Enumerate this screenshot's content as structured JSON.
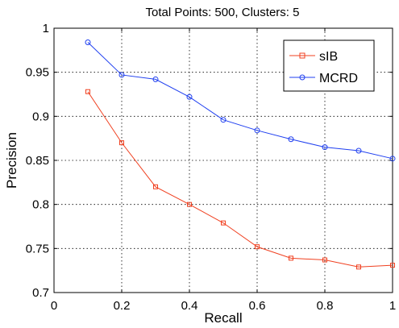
{
  "chart_data": {
    "type": "line",
    "title": "Total Points: 500, Clusters: 5",
    "xlabel": "Recall",
    "ylabel": "Precision",
    "xlim": [
      0,
      1
    ],
    "ylim": [
      0.7,
      1
    ],
    "xticks": [
      "0",
      "0.2",
      "0.4",
      "0.6",
      "0.8",
      "1"
    ],
    "xtick_values": [
      0,
      0.2,
      0.4,
      0.6,
      0.8,
      1
    ],
    "yticks": [
      "0.7",
      "0.75",
      "0.8",
      "0.85",
      "0.9",
      "0.95",
      "1"
    ],
    "ytick_values": [
      0.7,
      0.75,
      0.8,
      0.85,
      0.9,
      0.95,
      1
    ],
    "grid": true,
    "legend_position": "top-right",
    "x": [
      0.1,
      0.2,
      0.3,
      0.4,
      0.5,
      0.6,
      0.7,
      0.8,
      0.9,
      1.0
    ],
    "series": [
      {
        "name": "sIB",
        "color": "#f04020",
        "marker": "square",
        "values": [
          0.928,
          0.87,
          0.82,
          0.8,
          0.779,
          0.752,
          0.739,
          0.737,
          0.729,
          0.731
        ]
      },
      {
        "name": "MCRD",
        "color": "#2040f0",
        "marker": "circle",
        "values": [
          0.984,
          0.947,
          0.942,
          0.922,
          0.896,
          0.884,
          0.874,
          0.865,
          0.861,
          0.852
        ]
      }
    ]
  }
}
